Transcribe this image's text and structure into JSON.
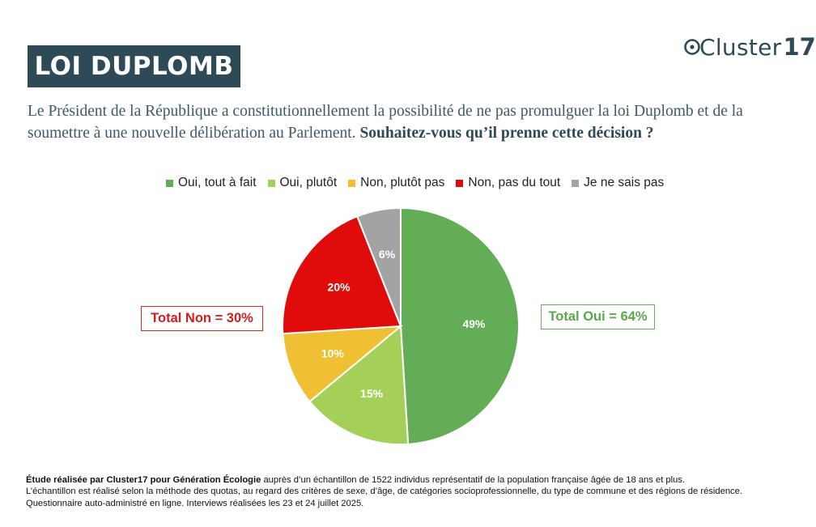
{
  "header": {
    "title": "LOI DUPLOMB",
    "brand_word": "Cluster",
    "brand_number": "17"
  },
  "question": {
    "intro": "Le Président de la République a constitutionnellement la possibilité de ne pas promulguer la loi Duplomb et de la soumettre à une nouvelle délibération au Parlement.",
    "ask": "Souhaitez-vous qu’il prenne cette décision ?"
  },
  "chart_data": {
    "type": "pie",
    "title": "",
    "legend_position": "top",
    "slices": [
      {
        "label": "Oui, tout à fait",
        "value": 49,
        "display": "49%",
        "color": "#63ad56"
      },
      {
        "label": "Oui, plutôt",
        "value": 15,
        "display": "15%",
        "color": "#a4cf58"
      },
      {
        "label": "Non, plutôt pas",
        "value": 10,
        "display": "10%",
        "color": "#efc033"
      },
      {
        "label": "Non, pas du tout",
        "value": 20,
        "display": "20%",
        "color": "#e00b0b"
      },
      {
        "label": "Je ne sais pas",
        "value": 6,
        "display": "6%",
        "color": "#a3a3a3"
      }
    ],
    "annotations": {
      "total_non": "Total Non = 30%",
      "total_oui": "Total Oui = 64%"
    }
  },
  "footnote": {
    "line1_bold": "Étude réalisée par Cluster17 pour Génération Écologie",
    "line1_rest": " auprès d’un échantillon de 1522 individus représentatif de la population française âgée de 18 ans et plus.",
    "line2": "L’échantillon est réalisé selon la méthode des quotas, au regard des critères de sexe, d’âge, de catégories socioprofessionnelle, du type de commune et des régions de résidence.",
    "line3": "Questionnaire auto-administré en ligne. Interviews réalisées les 23 et 24 juillet 2025."
  },
  "colors": {
    "title_bg": "#2e4a57",
    "non_accent": "#d01e1e",
    "oui_accent": "#5aa84a"
  }
}
